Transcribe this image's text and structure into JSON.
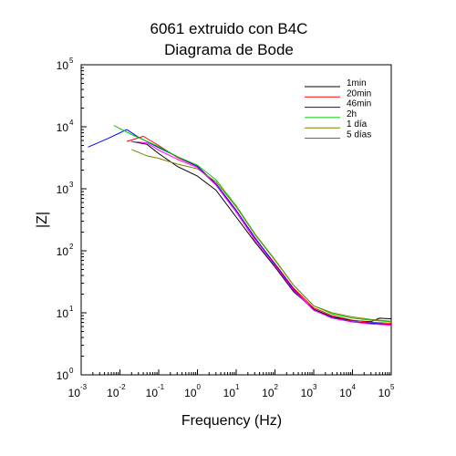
{
  "chart_data": {
    "type": "line",
    "title": [
      "6061 extruido con B4C",
      "Diagrama de Bode"
    ],
    "xlabel": "Frequency (Hz)",
    "ylabel": "|Z|",
    "xscale": "log",
    "yscale": "log",
    "xlim": [
      0.001,
      100000
    ],
    "ylim": [
      1,
      100000
    ],
    "xticks": [
      {
        "base": "10",
        "exp": "-3"
      },
      {
        "base": "10",
        "exp": "-2"
      },
      {
        "base": "10",
        "exp": "-1"
      },
      {
        "base": "10",
        "exp": "0"
      },
      {
        "base": "10",
        "exp": "1"
      },
      {
        "base": "10",
        "exp": "2"
      },
      {
        "base": "10",
        "exp": "3"
      },
      {
        "base": "10",
        "exp": "4"
      },
      {
        "base": "10",
        "exp": "5"
      }
    ],
    "yticks": [
      {
        "base": "10",
        "exp": "0"
      },
      {
        "base": "10",
        "exp": "1"
      },
      {
        "base": "10",
        "exp": "2"
      },
      {
        "base": "10",
        "exp": "3"
      },
      {
        "base": "10",
        "exp": "4"
      },
      {
        "base": "10",
        "exp": "5"
      }
    ],
    "grid": false,
    "legend_position": "top-right",
    "series": [
      {
        "name": "1min",
        "color": "#000000",
        "points": [
          [
            0.02,
            5800
          ],
          [
            0.05,
            5200
          ],
          [
            0.1,
            3700
          ],
          [
            0.3,
            2300
          ],
          [
            1,
            1600
          ],
          [
            3,
            950
          ],
          [
            10,
            350
          ],
          [
            30,
            140
          ],
          [
            100,
            55
          ],
          [
            300,
            22
          ],
          [
            1000,
            11.5
          ],
          [
            3000,
            8.6
          ],
          [
            10000,
            7.5
          ],
          [
            30000,
            7.2
          ],
          [
            50000,
            8.2
          ],
          [
            100000,
            8.0
          ]
        ]
      },
      {
        "name": "20min",
        "color": "#ff0000",
        "points": [
          [
            0.015,
            5800
          ],
          [
            0.04,
            7000
          ],
          [
            0.1,
            5000
          ],
          [
            0.3,
            3200
          ],
          [
            1,
            2300
          ],
          [
            3,
            1200
          ],
          [
            10,
            450
          ],
          [
            30,
            160
          ],
          [
            100,
            62
          ],
          [
            300,
            25
          ],
          [
            1000,
            12
          ],
          [
            3000,
            9
          ],
          [
            10000,
            7.6
          ],
          [
            30000,
            7.0
          ],
          [
            100000,
            6.8
          ]
        ]
      },
      {
        "name": "46min",
        "color": "#0000ff",
        "points": [
          [
            0.0015,
            4700
          ],
          [
            0.005,
            6500
          ],
          [
            0.015,
            9000
          ],
          [
            0.03,
            6800
          ],
          [
            0.1,
            4600
          ],
          [
            0.3,
            3300
          ],
          [
            1,
            2300
          ],
          [
            3,
            1200
          ],
          [
            10,
            450
          ],
          [
            30,
            165
          ],
          [
            100,
            60
          ],
          [
            300,
            24
          ],
          [
            1000,
            11
          ],
          [
            3000,
            8.3
          ],
          [
            10000,
            7.2
          ],
          [
            30000,
            6.8
          ],
          [
            100000,
            6.5
          ]
        ]
      },
      {
        "name": "2h",
        "color": "#00cc00",
        "points": [
          [
            0.007,
            10500
          ],
          [
            0.02,
            7500
          ],
          [
            0.1,
            4800
          ],
          [
            0.3,
            3300
          ],
          [
            1,
            2400
          ],
          [
            3,
            1400
          ],
          [
            10,
            530
          ],
          [
            30,
            190
          ],
          [
            100,
            72
          ],
          [
            300,
            28
          ],
          [
            1000,
            13
          ],
          [
            3000,
            9.6
          ],
          [
            10000,
            8.2
          ],
          [
            30000,
            7.6
          ],
          [
            100000,
            7.2
          ]
        ]
      },
      {
        "name": "1 día",
        "color": "#808000",
        "points": [
          [
            0.02,
            4300
          ],
          [
            0.05,
            3400
          ],
          [
            0.1,
            3100
          ],
          [
            0.3,
            2500
          ],
          [
            1,
            2100
          ],
          [
            3,
            1300
          ],
          [
            10,
            510
          ],
          [
            30,
            185
          ],
          [
            100,
            70
          ],
          [
            300,
            28
          ],
          [
            1000,
            13
          ],
          [
            3000,
            10
          ],
          [
            10000,
            8.6
          ],
          [
            30000,
            7.8
          ],
          [
            100000,
            7.3
          ]
        ]
      },
      {
        "name": "5 días",
        "color": "#ff00ff",
        "points": [
          [
            0.02,
            5800
          ],
          [
            0.05,
            5500
          ],
          [
            0.1,
            4200
          ],
          [
            0.3,
            3000
          ],
          [
            1,
            2200
          ],
          [
            3,
            1150
          ],
          [
            10,
            420
          ],
          [
            30,
            150
          ],
          [
            100,
            58
          ],
          [
            300,
            23
          ],
          [
            1000,
            11
          ],
          [
            3000,
            8.2
          ],
          [
            10000,
            7.1
          ],
          [
            30000,
            6.6
          ],
          [
            100000,
            6.3
          ]
        ]
      }
    ]
  }
}
